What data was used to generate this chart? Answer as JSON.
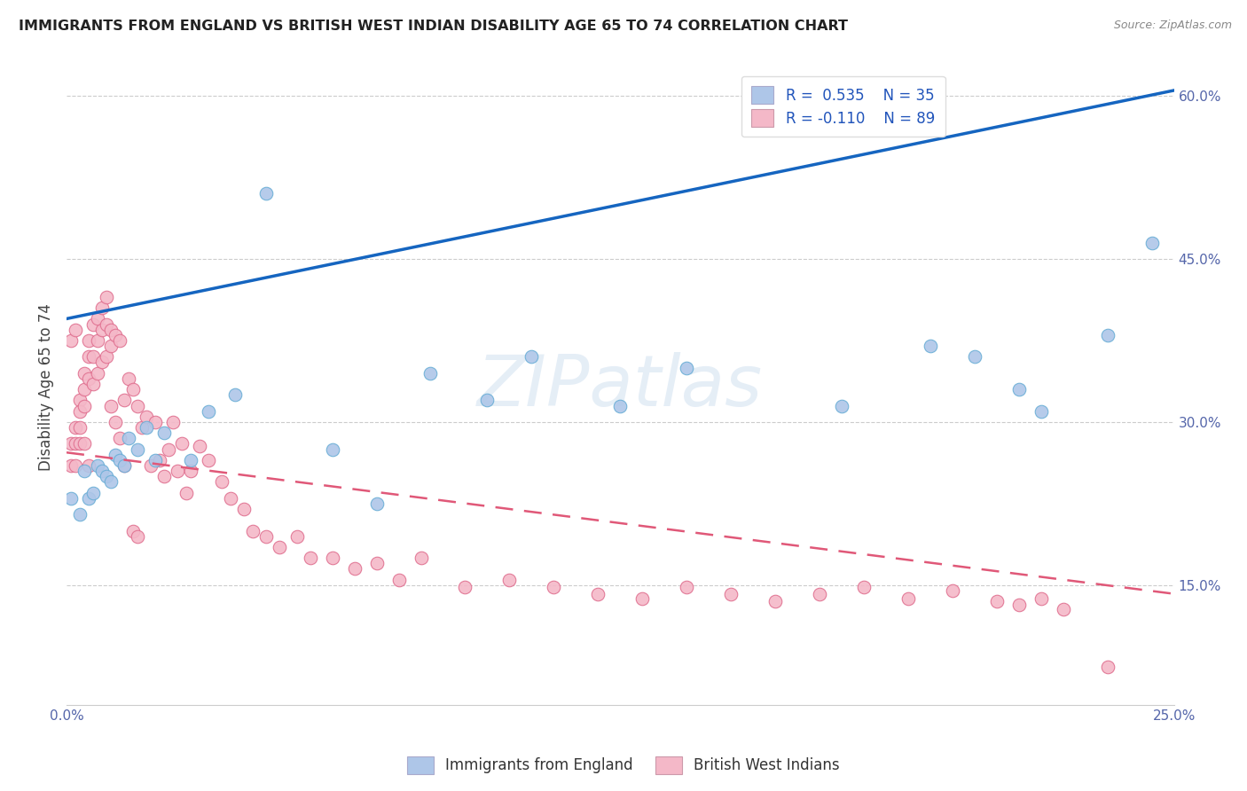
{
  "title": "IMMIGRANTS FROM ENGLAND VS BRITISH WEST INDIAN DISABILITY AGE 65 TO 74 CORRELATION CHART",
  "source": "Source: ZipAtlas.com",
  "xlabel": "",
  "ylabel": "Disability Age 65 to 74",
  "watermark": "ZIPatlas",
  "xmin": 0.0,
  "xmax": 0.25,
  "ymin": 0.04,
  "ymax": 0.625,
  "xticks": [
    0.0,
    0.05,
    0.1,
    0.15,
    0.2,
    0.25
  ],
  "xticklabels": [
    "0.0%",
    "",
    "",
    "",
    "",
    "25.0%"
  ],
  "yticks_right": [
    0.15,
    0.3,
    0.45,
    0.6
  ],
  "ytick_labels_right": [
    "15.0%",
    "30.0%",
    "45.0%",
    "60.0%"
  ],
  "series1_name": "Immigrants from England",
  "series1_R": 0.535,
  "series1_N": 35,
  "series1_color": "#aec6e8",
  "series1_edge": "#6aaed6",
  "series1_line_color": "#1565c0",
  "series2_name": "British West Indians",
  "series2_R": -0.11,
  "series2_N": 89,
  "series2_color": "#f4b8c8",
  "series2_edge": "#e07090",
  "series2_line_color": "#e05878",
  "legend_R1": "R =  0.535",
  "legend_N1": "N = 35",
  "legend_R2": "R = -0.110",
  "legend_N2": "N = 89",
  "blue_intercept": 0.395,
  "blue_slope": 0.84,
  "pink_intercept": 0.272,
  "pink_slope": -0.52,
  "blue_x": [
    0.001,
    0.003,
    0.004,
    0.005,
    0.006,
    0.007,
    0.008,
    0.009,
    0.01,
    0.011,
    0.012,
    0.013,
    0.014,
    0.016,
    0.018,
    0.02,
    0.022,
    0.028,
    0.032,
    0.038,
    0.045,
    0.06,
    0.07,
    0.082,
    0.095,
    0.105,
    0.125,
    0.14,
    0.175,
    0.195,
    0.205,
    0.215,
    0.22,
    0.235,
    0.245
  ],
  "blue_y": [
    0.23,
    0.215,
    0.255,
    0.23,
    0.235,
    0.26,
    0.255,
    0.25,
    0.245,
    0.27,
    0.265,
    0.26,
    0.285,
    0.275,
    0.295,
    0.265,
    0.29,
    0.265,
    0.31,
    0.325,
    0.51,
    0.275,
    0.225,
    0.345,
    0.32,
    0.36,
    0.315,
    0.35,
    0.315,
    0.37,
    0.36,
    0.33,
    0.31,
    0.38,
    0.465
  ],
  "pink_x": [
    0.001,
    0.001,
    0.001,
    0.002,
    0.002,
    0.002,
    0.002,
    0.003,
    0.003,
    0.003,
    0.003,
    0.004,
    0.004,
    0.004,
    0.004,
    0.005,
    0.005,
    0.005,
    0.005,
    0.006,
    0.006,
    0.006,
    0.007,
    0.007,
    0.007,
    0.008,
    0.008,
    0.008,
    0.009,
    0.009,
    0.009,
    0.01,
    0.01,
    0.01,
    0.011,
    0.011,
    0.012,
    0.012,
    0.013,
    0.013,
    0.014,
    0.015,
    0.015,
    0.016,
    0.016,
    0.017,
    0.018,
    0.019,
    0.02,
    0.021,
    0.022,
    0.023,
    0.024,
    0.025,
    0.026,
    0.027,
    0.028,
    0.03,
    0.032,
    0.035,
    0.037,
    0.04,
    0.042,
    0.045,
    0.048,
    0.052,
    0.055,
    0.06,
    0.065,
    0.07,
    0.075,
    0.08,
    0.09,
    0.1,
    0.11,
    0.12,
    0.13,
    0.14,
    0.15,
    0.16,
    0.17,
    0.18,
    0.19,
    0.2,
    0.21,
    0.215,
    0.22,
    0.225,
    0.235
  ],
  "pink_y": [
    0.28,
    0.26,
    0.375,
    0.295,
    0.28,
    0.26,
    0.385,
    0.32,
    0.31,
    0.295,
    0.28,
    0.345,
    0.33,
    0.315,
    0.28,
    0.375,
    0.36,
    0.34,
    0.26,
    0.39,
    0.36,
    0.335,
    0.395,
    0.375,
    0.345,
    0.405,
    0.385,
    0.355,
    0.415,
    0.39,
    0.36,
    0.385,
    0.37,
    0.315,
    0.38,
    0.3,
    0.375,
    0.285,
    0.32,
    0.26,
    0.34,
    0.33,
    0.2,
    0.315,
    0.195,
    0.295,
    0.305,
    0.26,
    0.3,
    0.265,
    0.25,
    0.275,
    0.3,
    0.255,
    0.28,
    0.235,
    0.255,
    0.278,
    0.265,
    0.245,
    0.23,
    0.22,
    0.2,
    0.195,
    0.185,
    0.195,
    0.175,
    0.175,
    0.165,
    0.17,
    0.155,
    0.175,
    0.148,
    0.155,
    0.148,
    0.142,
    0.138,
    0.148,
    0.142,
    0.135,
    0.142,
    0.148,
    0.138,
    0.145,
    0.135,
    0.132,
    0.138,
    0.128,
    0.075
  ]
}
